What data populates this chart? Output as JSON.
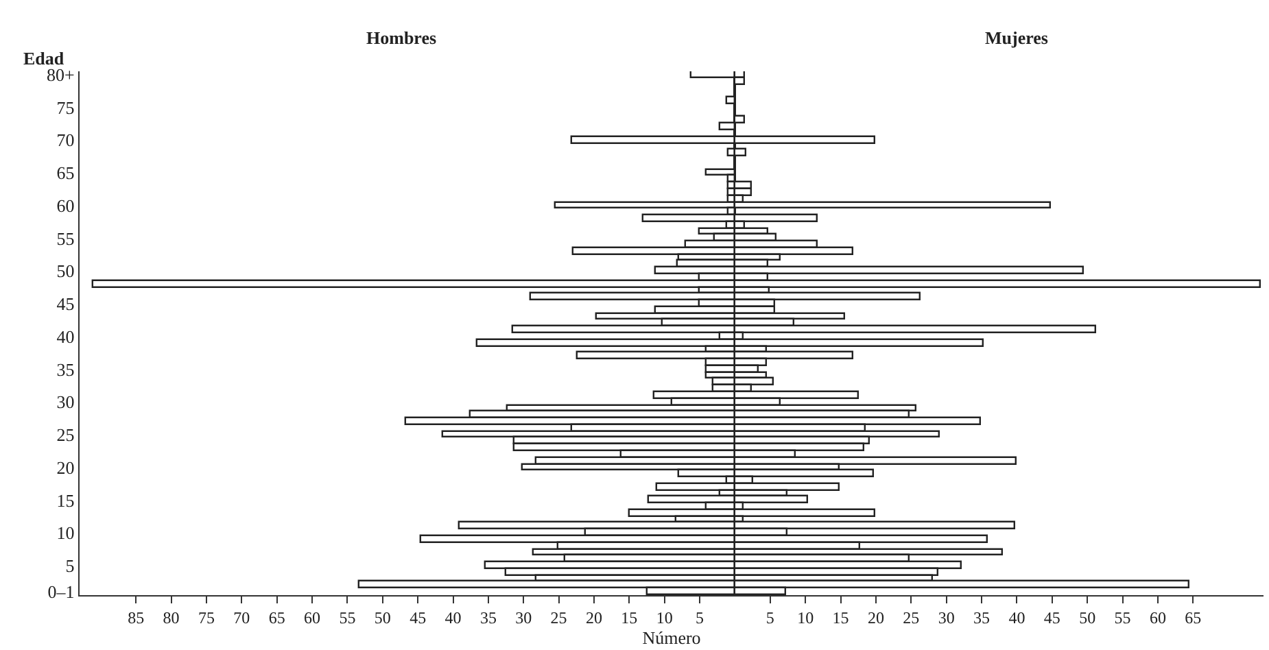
{
  "chart_data": {
    "type": "bar",
    "orientation": "horizontal",
    "stacked": true,
    "xlabel": "Número",
    "ylabel": "Edad",
    "annotations": [
      "Hombres",
      "Mujeres"
    ],
    "categories": [
      "80+",
      null,
      null,
      null,
      null,
      "75",
      null,
      null,
      null,
      null,
      "70",
      null,
      null,
      null,
      null,
      "65",
      null,
      null,
      null,
      null,
      "60",
      null,
      null,
      null,
      null,
      "55",
      null,
      null,
      null,
      null,
      "50",
      null,
      null,
      null,
      null,
      "45",
      null,
      null,
      null,
      null,
      "40",
      null,
      null,
      null,
      null,
      "35",
      null,
      null,
      null,
      null,
      "30",
      null,
      null,
      null,
      null,
      "25",
      null,
      null,
      null,
      null,
      "20",
      null,
      null,
      null,
      null,
      "15",
      null,
      null,
      null,
      null,
      "10",
      null,
      null,
      null,
      null,
      "5",
      null,
      null,
      null,
      "0–1"
    ],
    "series": [
      {
        "color": "#ffffff",
        "values": [
          -6.1,
          null,
          null,
          null,
          -1.2,
          null,
          null,
          null,
          -2.0,
          null,
          -23.1,
          null,
          -1.0,
          null,
          null,
          -4.0,
          -1.0,
          -1.0,
          -1.0,
          -1.0,
          -25.5,
          -1.0,
          -13.0,
          -1.2,
          -5.1,
          -2.9,
          -6.9,
          -23.0,
          -8.0,
          -8.1,
          -11.3,
          -5.1,
          -91.0,
          -5.0,
          -29.0,
          -5.0,
          -11.3,
          -19.6,
          -10.2,
          -31.5,
          -2.1,
          -36.6,
          -4.0,
          -22.4,
          -4.0,
          -4.0,
          -4.0,
          -3.0,
          -3.0,
          -11.5,
          -9.0,
          -32.2,
          -37.5,
          -46.6,
          -23.1,
          -41.4,
          -31.2,
          -31.2,
          -16.2,
          -28.2,
          -30.1,
          -8.0,
          -1.2,
          -11.0,
          -2.0,
          -12.3,
          -4.0,
          -15.0,
          -8.3,
          -39.1,
          -21.1,
          -44.5,
          -25.1,
          -28.6,
          -24.0,
          -35.4,
          -32.5,
          -28.2,
          -53.3,
          -12.5
        ]
      },
      {
        "color": "#ffffff",
        "values": [
          1.4,
          1.4,
          null,
          null,
          null,
          null,
          null,
          1.4,
          null,
          null,
          19.9,
          null,
          1.7,
          null,
          null,
          null,
          null,
          2.3,
          2.3,
          1.2,
          44.8,
          null,
          11.7,
          1.5,
          4.7,
          5.9,
          11.7,
          16.8,
          6.5,
          4.7,
          49.4,
          4.7,
          74.7,
          5.0,
          26.3,
          5.7,
          5.7,
          15.7,
          8.4,
          51.2,
          1.2,
          35.2,
          4.5,
          16.8,
          4.5,
          3.4,
          4.5,
          5.5,
          2.3,
          17.6,
          6.5,
          25.7,
          24.7,
          34.8,
          18.6,
          29.0,
          19.2,
          18.4,
          8.6,
          40.0,
          14.8,
          19.7,
          2.5,
          14.8,
          7.5,
          10.4,
          1.2,
          20.0,
          1.2,
          39.7,
          7.5,
          35.8,
          17.8,
          38.1,
          24.7,
          32.1,
          28.8,
          28.0,
          64.4,
          7.3
        ]
      }
    ],
    "xlim": [
      -93,
      75
    ],
    "xticks": [
      {
        "value": -85,
        "label": "85"
      },
      {
        "value": -80,
        "label": "80"
      },
      {
        "value": -75,
        "label": "75"
      },
      {
        "value": -70,
        "label": "70"
      },
      {
        "value": -65,
        "label": "65"
      },
      {
        "value": -60,
        "label": "60"
      },
      {
        "value": -55,
        "label": "55"
      },
      {
        "value": -50,
        "label": "50"
      },
      {
        "value": -45,
        "label": "45"
      },
      {
        "value": -40,
        "label": "40"
      },
      {
        "value": -35,
        "label": "35"
      },
      {
        "value": -30,
        "label": "30"
      },
      {
        "value": -25,
        "label": "25"
      },
      {
        "value": -20,
        "label": "20"
      },
      {
        "value": -15,
        "label": "15"
      },
      {
        "value": -10,
        "label": "10"
      },
      {
        "value": -5,
        "label": "5"
      },
      5,
      10,
      15,
      20,
      25,
      30,
      35,
      40,
      45,
      50,
      55,
      60,
      65
    ]
  }
}
